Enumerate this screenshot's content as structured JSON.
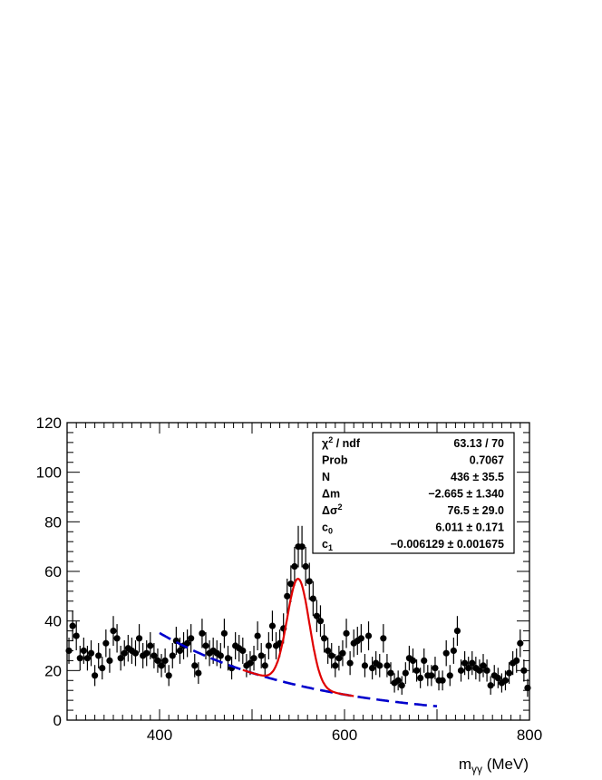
{
  "chart_data": {
    "type": "scatter",
    "xlabel": "m",
    "xlabel_sub": "γγ",
    "xlabel_unit": " (MeV)",
    "xlim": [
      300,
      800
    ],
    "ylim": [
      0,
      120
    ],
    "x_ticks": [
      "400",
      "600",
      "800"
    ],
    "y_ticks": [
      "0",
      "20",
      "40",
      "60",
      "80",
      "100",
      "120"
    ],
    "legend_position": "top-right",
    "grid": false,
    "stats": [
      {
        "label": "χ",
        "sup": "2",
        "label_rest": " / ndf",
        "value": "63.13 / 70"
      },
      {
        "label": "Prob",
        "value": "0.7067"
      },
      {
        "label": "N",
        "value": "436 ± 35.5"
      },
      {
        "label": "Δm",
        "value": "−2.665 ± 1.340"
      },
      {
        "label": "Δσ",
        "sup": "2",
        "value": "76.5 ± 29.0"
      },
      {
        "label": "c",
        "sub": "0",
        "value": "6.011 ± 0.171"
      },
      {
        "label": "c",
        "sub": "1",
        "value": "−0.006129 ± 0.001675"
      }
    ],
    "fit": {
      "range": [
        400,
        700
      ],
      "signal_mean": 550,
      "signal_sigma": 12,
      "signal_amplitude": 43,
      "background_c0": 6.011,
      "background_c1": -0.006129,
      "signal_color": "#e00000",
      "background_color": "#0000cc"
    },
    "series": [
      {
        "marker_color": "#000000",
        "points": [
          {
            "x": 302,
            "y": 28
          },
          {
            "x": 306,
            "y": 38
          },
          {
            "x": 310,
            "y": 34
          },
          {
            "x": 314,
            "y": 25
          },
          {
            "x": 318,
            "y": 28
          },
          {
            "x": 322,
            "y": 25
          },
          {
            "x": 326,
            "y": 27
          },
          {
            "x": 330,
            "y": 18
          },
          {
            "x": 334,
            "y": 26
          },
          {
            "x": 338,
            "y": 21
          },
          {
            "x": 342,
            "y": 31
          },
          {
            "x": 346,
            "y": 24
          },
          {
            "x": 350,
            "y": 36
          },
          {
            "x": 354,
            "y": 33
          },
          {
            "x": 358,
            "y": 25
          },
          {
            "x": 362,
            "y": 27
          },
          {
            "x": 366,
            "y": 29
          },
          {
            "x": 370,
            "y": 28
          },
          {
            "x": 374,
            "y": 27
          },
          {
            "x": 378,
            "y": 33
          },
          {
            "x": 382,
            "y": 26
          },
          {
            "x": 386,
            "y": 27
          },
          {
            "x": 390,
            "y": 30
          },
          {
            "x": 394,
            "y": 26
          },
          {
            "x": 398,
            "y": 24
          },
          {
            "x": 402,
            "y": 22
          },
          {
            "x": 406,
            "y": 24
          },
          {
            "x": 410,
            "y": 18
          },
          {
            "x": 414,
            "y": 26
          },
          {
            "x": 418,
            "y": 32
          },
          {
            "x": 422,
            "y": 28
          },
          {
            "x": 426,
            "y": 30
          },
          {
            "x": 430,
            "y": 31
          },
          {
            "x": 434,
            "y": 33
          },
          {
            "x": 438,
            "y": 22
          },
          {
            "x": 442,
            "y": 19
          },
          {
            "x": 446,
            "y": 35
          },
          {
            "x": 450,
            "y": 30
          },
          {
            "x": 454,
            "y": 27
          },
          {
            "x": 458,
            "y": 28
          },
          {
            "x": 462,
            "y": 27
          },
          {
            "x": 466,
            "y": 26
          },
          {
            "x": 470,
            "y": 35
          },
          {
            "x": 474,
            "y": 25
          },
          {
            "x": 478,
            "y": 21
          },
          {
            "x": 482,
            "y": 30
          },
          {
            "x": 486,
            "y": 29
          },
          {
            "x": 490,
            "y": 28
          },
          {
            "x": 494,
            "y": 22
          },
          {
            "x": 498,
            "y": 23
          },
          {
            "x": 502,
            "y": 25
          },
          {
            "x": 506,
            "y": 34
          },
          {
            "x": 510,
            "y": 26
          },
          {
            "x": 514,
            "y": 22
          },
          {
            "x": 518,
            "y": 30
          },
          {
            "x": 522,
            "y": 38
          },
          {
            "x": 526,
            "y": 30
          },
          {
            "x": 530,
            "y": 31
          },
          {
            "x": 534,
            "y": 37
          },
          {
            "x": 538,
            "y": 50
          },
          {
            "x": 542,
            "y": 55
          },
          {
            "x": 546,
            "y": 62
          },
          {
            "x": 550,
            "y": 70
          },
          {
            "x": 554,
            "y": 70
          },
          {
            "x": 558,
            "y": 62
          },
          {
            "x": 562,
            "y": 56
          },
          {
            "x": 566,
            "y": 49
          },
          {
            "x": 570,
            "y": 42
          },
          {
            "x": 574,
            "y": 40
          },
          {
            "x": 578,
            "y": 33
          },
          {
            "x": 582,
            "y": 28
          },
          {
            "x": 586,
            "y": 26
          },
          {
            "x": 590,
            "y": 22
          },
          {
            "x": 594,
            "y": 25
          },
          {
            "x": 598,
            "y": 27
          },
          {
            "x": 602,
            "y": 35
          },
          {
            "x": 606,
            "y": 23
          },
          {
            "x": 610,
            "y": 31
          },
          {
            "x": 614,
            "y": 32
          },
          {
            "x": 618,
            "y": 33
          },
          {
            "x": 622,
            "y": 22
          },
          {
            "x": 626,
            "y": 34
          },
          {
            "x": 630,
            "y": 21
          },
          {
            "x": 634,
            "y": 23
          },
          {
            "x": 638,
            "y": 22
          },
          {
            "x": 642,
            "y": 33
          },
          {
            "x": 646,
            "y": 22
          },
          {
            "x": 650,
            "y": 19
          },
          {
            "x": 654,
            "y": 15
          },
          {
            "x": 658,
            "y": 16
          },
          {
            "x": 662,
            "y": 14
          },
          {
            "x": 666,
            "y": 19
          },
          {
            "x": 670,
            "y": 25
          },
          {
            "x": 674,
            "y": 24
          },
          {
            "x": 678,
            "y": 20
          },
          {
            "x": 682,
            "y": 17
          },
          {
            "x": 686,
            "y": 24
          },
          {
            "x": 690,
            "y": 18
          },
          {
            "x": 694,
            "y": 18
          },
          {
            "x": 698,
            "y": 21
          },
          {
            "x": 702,
            "y": 16
          },
          {
            "x": 706,
            "y": 16
          },
          {
            "x": 710,
            "y": 27
          },
          {
            "x": 714,
            "y": 18
          },
          {
            "x": 718,
            "y": 28
          },
          {
            "x": 722,
            "y": 36
          },
          {
            "x": 726,
            "y": 20
          },
          {
            "x": 730,
            "y": 23
          },
          {
            "x": 734,
            "y": 21
          },
          {
            "x": 738,
            "y": 23
          },
          {
            "x": 742,
            "y": 21
          },
          {
            "x": 746,
            "y": 20
          },
          {
            "x": 750,
            "y": 22
          },
          {
            "x": 754,
            "y": 20
          },
          {
            "x": 758,
            "y": 14
          },
          {
            "x": 762,
            "y": 18
          },
          {
            "x": 766,
            "y": 17
          },
          {
            "x": 770,
            "y": 15
          },
          {
            "x": 774,
            "y": 16
          },
          {
            "x": 778,
            "y": 19
          },
          {
            "x": 782,
            "y": 23
          },
          {
            "x": 786,
            "y": 24
          },
          {
            "x": 790,
            "y": 31
          },
          {
            "x": 794,
            "y": 20
          },
          {
            "x": 798,
            "y": 13
          }
        ]
      }
    ]
  }
}
